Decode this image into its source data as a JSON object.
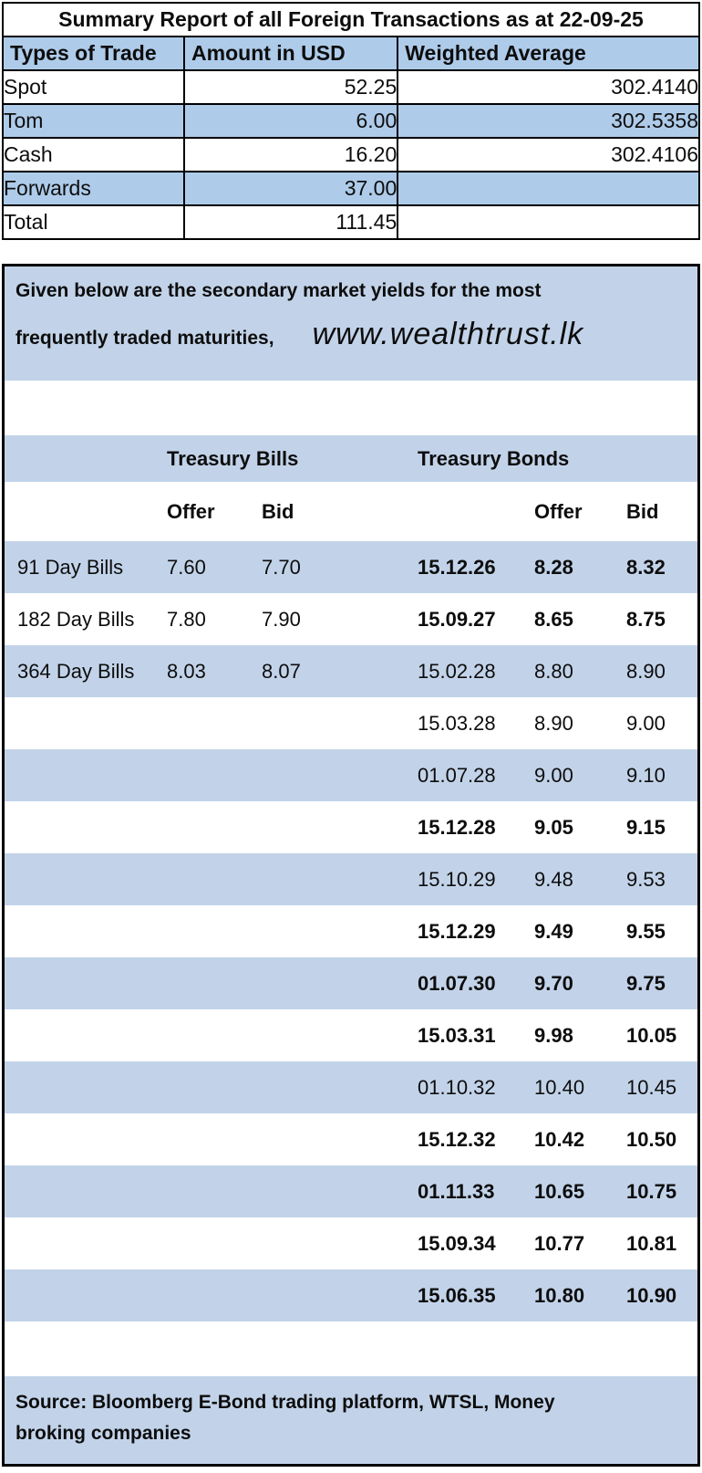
{
  "summary_table": {
    "title": "Summary Report of all Foreign Transactions as at 22-09-25",
    "columns": [
      "Types of Trade",
      "Amount in USD",
      "Weighted Average"
    ],
    "rows": [
      {
        "type": "Spot",
        "amount": "52.25",
        "wavg": "302.4140"
      },
      {
        "type": "Tom",
        "amount": "6.00",
        "wavg": "302.5358"
      },
      {
        "type": "Cash",
        "amount": "16.20",
        "wavg": "302.4106"
      },
      {
        "type": "Forwards",
        "amount": "37.00",
        "wavg": ""
      },
      {
        "type": "Total",
        "amount": "111.45",
        "wavg": ""
      }
    ]
  },
  "yields_section": {
    "intro_line1": "Given below are the secondary market yields for the most",
    "intro_line2": "frequently traded maturities,",
    "website": "www.wealthtrust.lk",
    "bills_header": "Treasury Bills",
    "bonds_header": "Treasury Bonds",
    "offer_label": "Offer",
    "bid_label": "Bid",
    "rows": [
      {
        "bill": "91 Day Bills",
        "bill_offer": "7.60",
        "bill_bid": "7.70",
        "bond_date": "15.12.26",
        "bond_offer": "8.28",
        "bond_bid": "8.32",
        "bold": true
      },
      {
        "bill": "182 Day Bills",
        "bill_offer": "7.80",
        "bill_bid": "7.90",
        "bond_date": "15.09.27",
        "bond_offer": "8.65",
        "bond_bid": "8.75",
        "bold": true
      },
      {
        "bill": "364 Day Bills",
        "bill_offer": "8.03",
        "bill_bid": "8.07",
        "bond_date": "15.02.28",
        "bond_offer": "8.80",
        "bond_bid": "8.90",
        "bold": false
      },
      {
        "bill": "",
        "bill_offer": "",
        "bill_bid": "",
        "bond_date": "15.03.28",
        "bond_offer": "8.90",
        "bond_bid": "9.00",
        "bold": false
      },
      {
        "bill": "",
        "bill_offer": "",
        "bill_bid": "",
        "bond_date": "01.07.28",
        "bond_offer": "9.00",
        "bond_bid": "9.10",
        "bold": false
      },
      {
        "bill": "",
        "bill_offer": "",
        "bill_bid": "",
        "bond_date": "15.12.28",
        "bond_offer": "9.05",
        "bond_bid": "9.15",
        "bold": true
      },
      {
        "bill": "",
        "bill_offer": "",
        "bill_bid": "",
        "bond_date": "15.10.29",
        "bond_offer": "9.48",
        "bond_bid": "9.53",
        "bold": false
      },
      {
        "bill": "",
        "bill_offer": "",
        "bill_bid": "",
        "bond_date": "15.12.29",
        "bond_offer": "9.49",
        "bond_bid": "9.55",
        "bold": true
      },
      {
        "bill": "",
        "bill_offer": "",
        "bill_bid": "",
        "bond_date": "01.07.30",
        "bond_offer": "9.70",
        "bond_bid": "9.75",
        "bold": true
      },
      {
        "bill": "",
        "bill_offer": "",
        "bill_bid": "",
        "bond_date": "15.03.31",
        "bond_offer": "9.98",
        "bond_bid": "10.05",
        "bold": true
      },
      {
        "bill": "",
        "bill_offer": "",
        "bill_bid": "",
        "bond_date": "01.10.32",
        "bond_offer": "10.40",
        "bond_bid": "10.45",
        "bold": false
      },
      {
        "bill": "",
        "bill_offer": "",
        "bill_bid": "",
        "bond_date": "15.12.32",
        "bond_offer": "10.42",
        "bond_bid": "10.50",
        "bold": true
      },
      {
        "bill": "",
        "bill_offer": "",
        "bill_bid": "",
        "bond_date": "01.11.33",
        "bond_offer": "10.65",
        "bond_bid": "10.75",
        "bold": true
      },
      {
        "bill": "",
        "bill_offer": "",
        "bill_bid": "",
        "bond_date": "15.09.34",
        "bond_offer": "10.77",
        "bond_bid": "10.81",
        "bold": true
      },
      {
        "bill": "",
        "bill_offer": "",
        "bill_bid": "",
        "bond_date": "15.06.35",
        "bond_offer": "10.80",
        "bond_bid": "10.90",
        "bold": true
      }
    ],
    "source_line1": "Source: Bloomberg E-Bond trading platform, WTSL, Money",
    "source_line2": "broking companies",
    "colors": {
      "summary_stripe": "#aecbe9",
      "yields_stripe": "#c2d3e9",
      "border": "#000000",
      "text": "#0d0d0d"
    }
  }
}
